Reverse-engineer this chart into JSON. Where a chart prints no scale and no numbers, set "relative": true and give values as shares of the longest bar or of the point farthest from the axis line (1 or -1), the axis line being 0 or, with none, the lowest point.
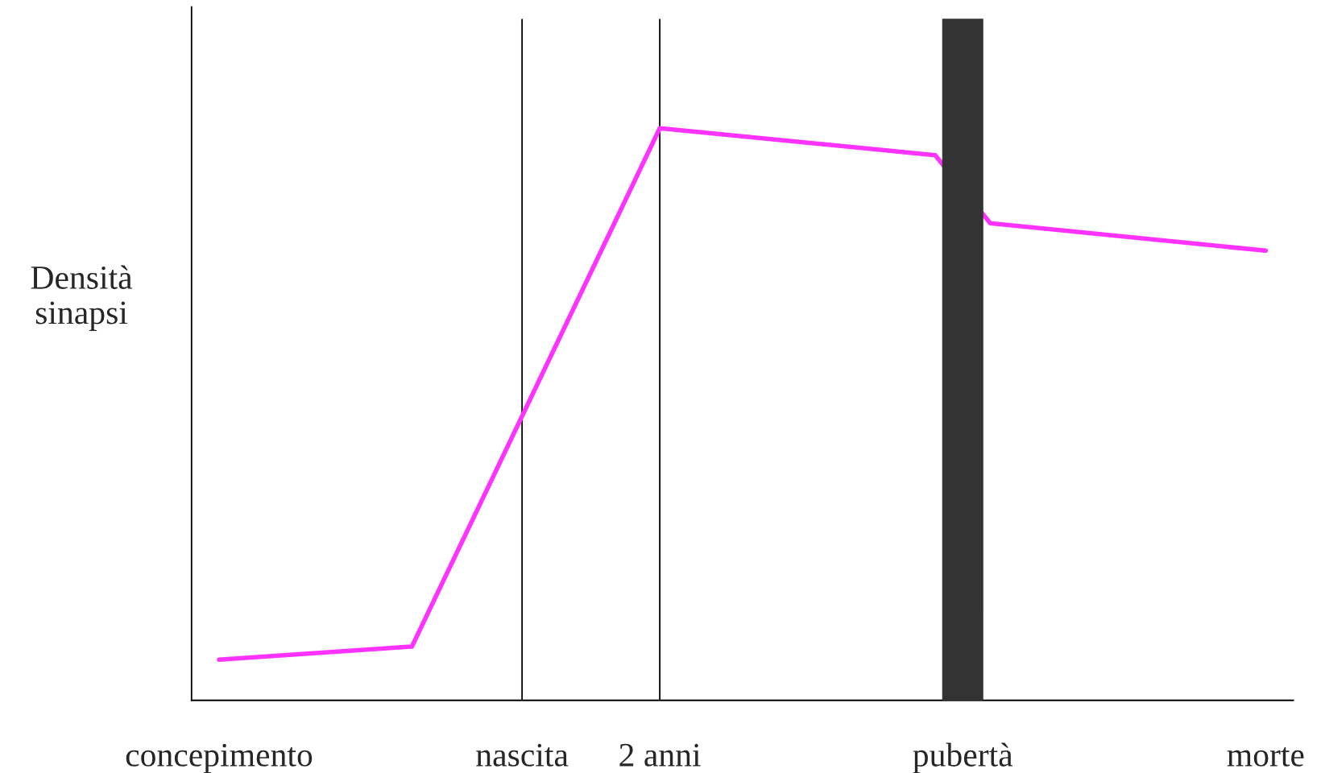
{
  "chart_data": {
    "type": "line",
    "ylabel": "Densità\nsinapsi",
    "relative": true,
    "categories": [
      "concepimento",
      null,
      null,
      null,
      null,
      null,
      null,
      null,
      null,
      null,
      null,
      "nascita",
      null,
      null,
      null,
      null,
      "2 anni",
      null,
      null,
      null,
      null,
      null,
      null,
      null,
      null,
      null,
      null,
      "pubertà",
      null,
      null,
      null,
      null,
      null,
      null,
      null,
      null,
      null,
      null,
      "morte"
    ],
    "series": [
      {
        "color": "#ff33ff",
        "values": [
          0.071,
          null,
          null,
          null,
          null,
          null,
          null,
          0.094,
          null,
          null,
          null,
          null,
          null,
          null,
          null,
          null,
          1,
          null,
          null,
          null,
          null,
          null,
          null,
          null,
          null,
          null,
          0.953,
          null,
          0.834,
          null,
          null,
          null,
          null,
          null,
          null,
          null,
          null,
          null,
          0.786
        ]
      }
    ],
    "ref_lines": [
      {
        "axis": "x",
        "value": "nascita",
        "color": "#000000"
      },
      {
        "axis": "x",
        "value": "2 anni",
        "color": "#000000"
      }
    ],
    "bands": [
      {
        "axis": "x",
        "from": "pubertà",
        "to": "pubertà",
        "color": "#333333"
      }
    ]
  }
}
